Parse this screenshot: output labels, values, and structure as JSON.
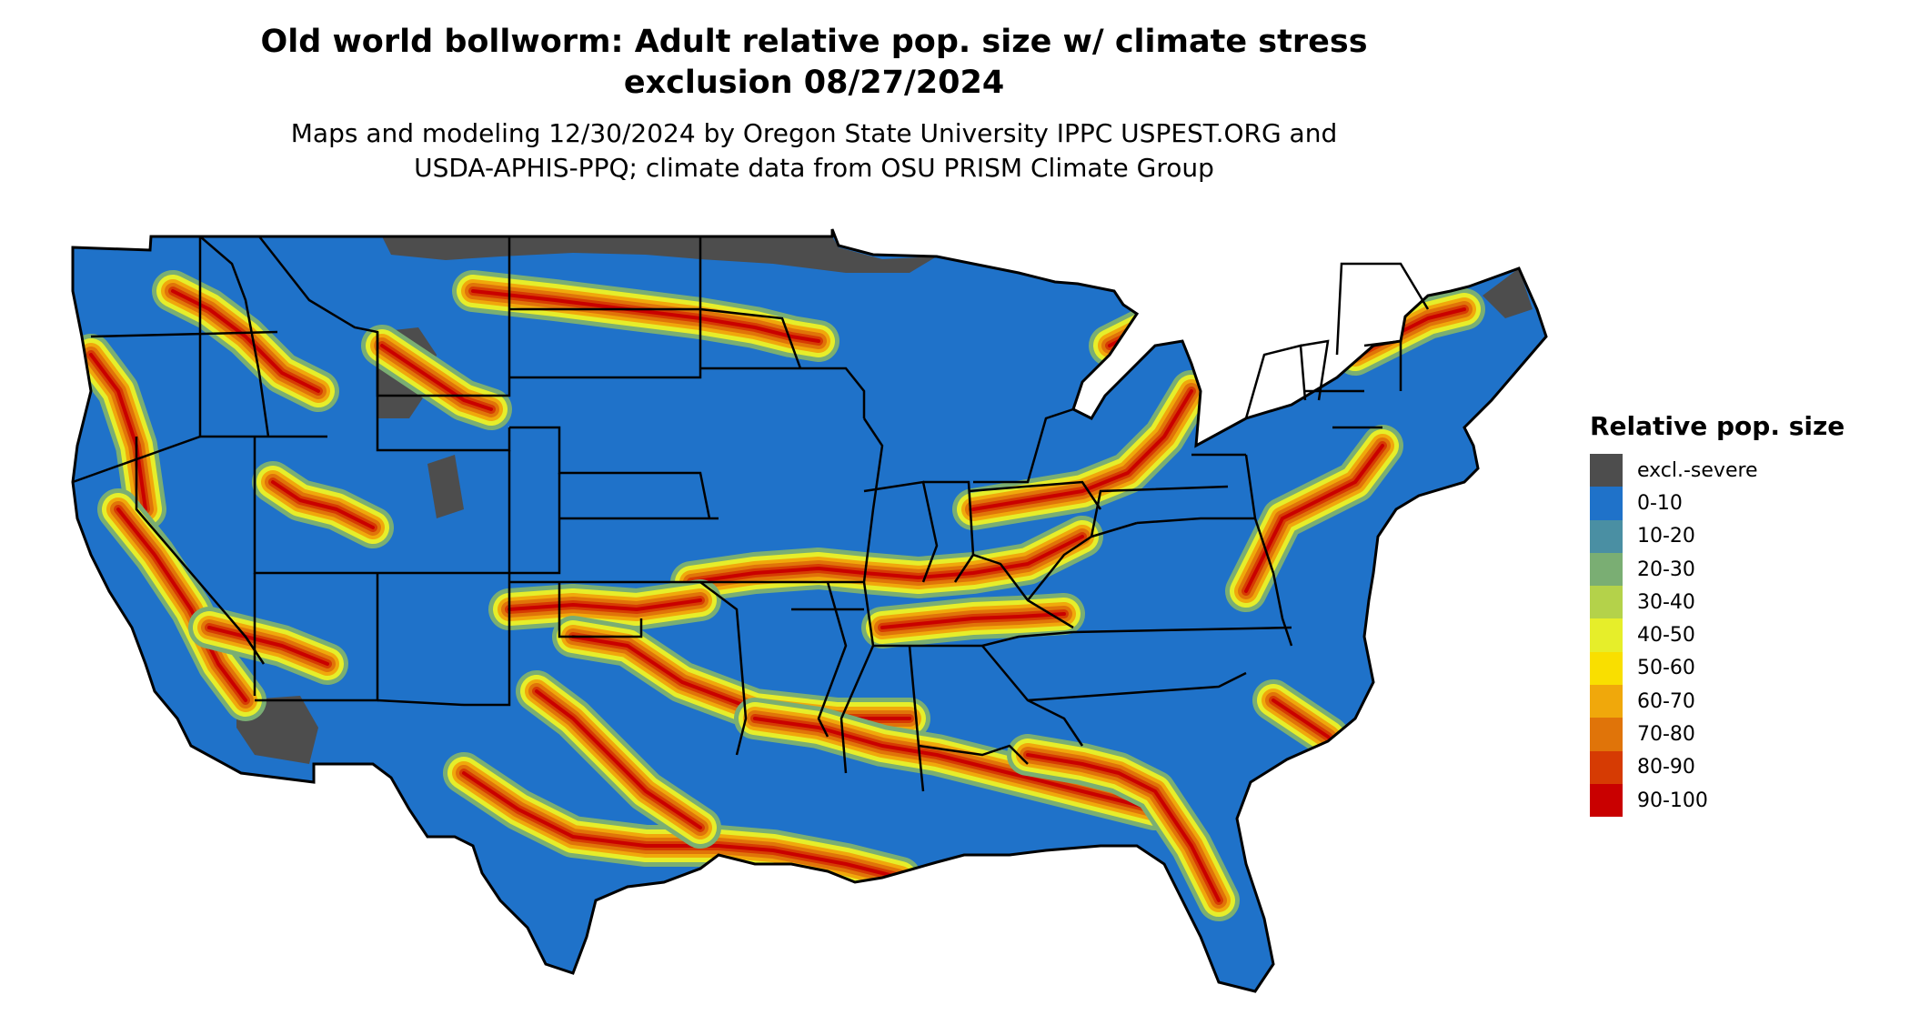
{
  "title": "Old world bollworm: Adult relative pop. size w/ climate stress exclusion 08/27/2024",
  "title_lines": [
    "Old world bollworm: Adult relative pop. size w/ climate stress",
    "exclusion 08/27/2024"
  ],
  "subtitle_lines": [
    "Maps and modeling 12/30/2024 by Oregon State University IPPC USPEST.ORG and",
    "USDA-APHIS-PPQ; climate data from OSU PRISM Climate Group"
  ],
  "legend": {
    "title": "Relative pop. size",
    "items": [
      {
        "label": "excl.-severe",
        "color": "#4d4d4d"
      },
      {
        "label": "0-10",
        "color": "#1f72c9"
      },
      {
        "label": "10-20",
        "color": "#4a8fa3"
      },
      {
        "label": "20-30",
        "color": "#7aae73"
      },
      {
        "label": "30-40",
        "color": "#b4d24a"
      },
      {
        "label": "40-50",
        "color": "#e6ee2a"
      },
      {
        "label": "50-60",
        "color": "#f9df00"
      },
      {
        "label": "60-70",
        "color": "#f0a80b"
      },
      {
        "label": "70-80",
        "color": "#e07409"
      },
      {
        "label": "80-90",
        "color": "#d63b03"
      },
      {
        "label": "90-100",
        "color": "#c90000"
      }
    ]
  },
  "map": {
    "region": "Contiguous United States",
    "background_class": "0-10",
    "boundary_color": "#000000"
  }
}
